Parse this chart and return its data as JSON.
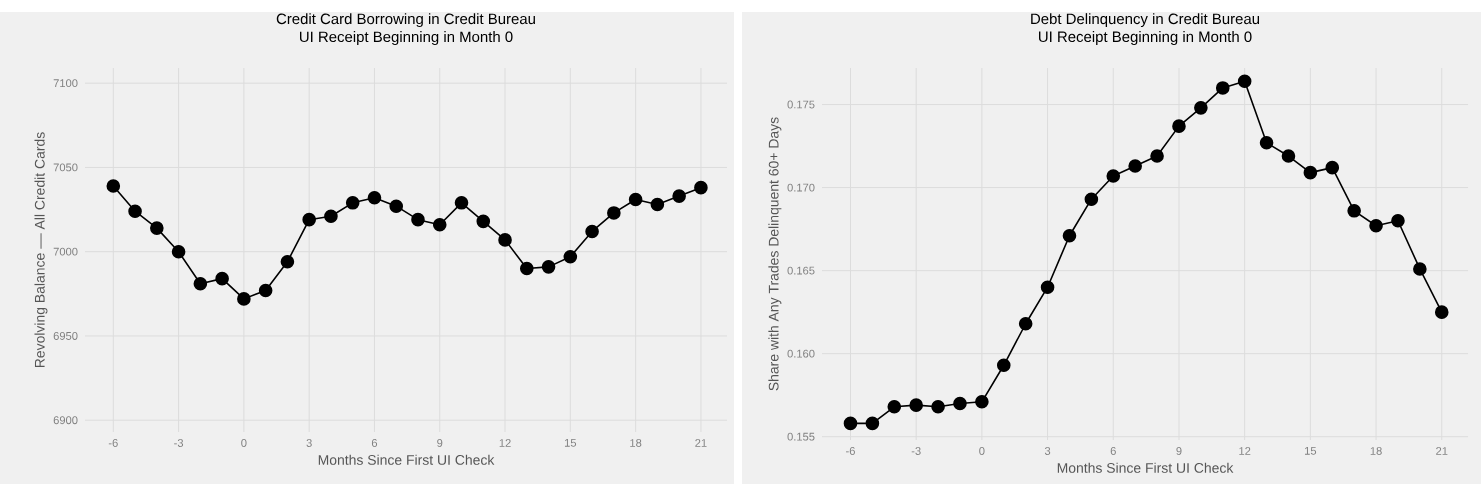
{
  "chart_data": [
    {
      "type": "line",
      "title": "Credit Card Borrowing in Credit Bureau",
      "subtitle": "UI Receipt Beginning in Month 0",
      "xlabel": "Months Since First UI Check",
      "ylabel": "Revolving Balance –– All Credit Cards",
      "x": [
        -6,
        -5,
        -4,
        -3,
        -2,
        -1,
        0,
        1,
        2,
        3,
        4,
        5,
        6,
        7,
        8,
        9,
        10,
        11,
        12,
        13,
        14,
        15,
        16,
        17,
        18,
        19,
        20,
        21
      ],
      "series": [
        {
          "color": "#000000",
          "values": [
            7039,
            7024,
            7014,
            7000,
            6981,
            6984,
            6972,
            6977,
            6994,
            7019,
            7021,
            7029,
            7032,
            7027,
            7019,
            7016,
            7029,
            7018,
            7007,
            6990,
            6991,
            6997,
            7012,
            7023,
            7031,
            7028,
            7033,
            7038
          ]
        }
      ],
      "xlim": [
        -7.3,
        22.2
      ],
      "ylim": [
        6893,
        7109
      ],
      "xticks": [
        -6,
        -3,
        0,
        3,
        6,
        9,
        12,
        15,
        18,
        21
      ],
      "yticks": [
        6900,
        6950,
        7000,
        7050,
        7100
      ],
      "grid": true,
      "marker": "circle",
      "line_style": "solid"
    },
    {
      "type": "line",
      "title": "Debt Delinquency in Credit Bureau",
      "subtitle": "UI Receipt Beginning in Month 0",
      "xlabel": "Months Since First UI Check",
      "ylabel": "Share with Any Trades Delinquent 60+ Days",
      "x": [
        -6,
        -5,
        -4,
        -3,
        -2,
        -1,
        0,
        1,
        2,
        3,
        4,
        5,
        6,
        7,
        8,
        9,
        10,
        11,
        12,
        13,
        14,
        15,
        16,
        17,
        18,
        19,
        20,
        21
      ],
      "series": [
        {
          "color": "#000000",
          "values": [
            0.1558,
            0.1558,
            0.1568,
            0.1569,
            0.1568,
            0.157,
            0.1571,
            0.1593,
            0.1618,
            0.164,
            0.1671,
            0.1693,
            0.1707,
            0.1713,
            0.1719,
            0.1737,
            0.1748,
            0.176,
            0.1764,
            0.1727,
            0.1719,
            0.1709,
            0.1712,
            0.1686,
            0.1677,
            0.168,
            0.1651,
            0.1625
          ]
        }
      ],
      "xlim": [
        -7.3,
        22.2
      ],
      "ylim": [
        0.1548,
        0.1772
      ],
      "xticks": [
        -6,
        -3,
        0,
        3,
        6,
        9,
        12,
        15,
        18,
        21
      ],
      "yticks": [
        0.155,
        {
          "value": 0.16,
          "label": "0.160"
        },
        0.165,
        {
          "value": 0.17,
          "label": "0.170"
        },
        0.175
      ],
      "grid": true,
      "marker": "circle",
      "line_style": "solid"
    }
  ]
}
